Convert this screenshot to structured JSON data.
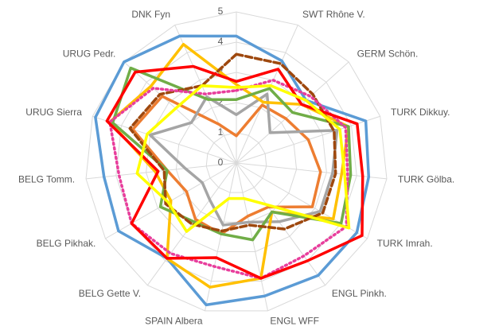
{
  "chart_data": {
    "type": "radar",
    "categories": [
      null,
      "SWT Rhône V.",
      "GERM Schön.",
      "TURK Dikkuy.",
      "TURK Gölba.",
      "TURK Imrah.",
      "ENGL Pinkh.",
      "ENGL WFF",
      "SPAIN Albera",
      "BELG Gette V.",
      "BELG Pikhak.",
      "BELG Tomm.",
      "URUG Sierra",
      "URUG Pedr.",
      "DNK Fyn"
    ],
    "rlim": [
      0,
      5
    ],
    "rticks": [
      0,
      1,
      2,
      3,
      4,
      5
    ],
    "grid": true,
    "series": [
      {
        "color": "#5b9bd5",
        "style": "solid",
        "values": [
          4.2,
          3.7,
          3.1,
          4.5,
          4.4,
          4.6,
          4.6,
          4.5,
          4.8,
          3.9,
          4.5,
          4.4,
          4.9,
          5.0,
          4.6
        ]
      },
      {
        "color": "#ed7d31",
        "style": "solid",
        "values": [
          0.9,
          2.1,
          2.2,
          2.5,
          2.8,
          2.9,
          1.8,
          1.8,
          2.4,
          2.3,
          1.9,
          2.3,
          3.6,
          3.3,
          1.4
        ]
      },
      {
        "color": "#a5a5a5",
        "style": "solid",
        "values": [
          1.6,
          2.5,
          1.5,
          3.5,
          3.2,
          3.2,
          2.4,
          2.0,
          2.1,
          1.5,
          1.3,
          1.7,
          3.0,
          2.0,
          2.4
        ]
      },
      {
        "color": "#ffc000",
        "style": "solid",
        "values": [
          2.6,
          2.2,
          2.9,
          3.9,
          3.5,
          3.7,
          2.0,
          3.9,
          4.2,
          3.9,
          2.5,
          2.7,
          4.4,
          3.8,
          4.3
        ]
      },
      {
        "color": "#70ad47",
        "style": "solid",
        "values": [
          2.1,
          2.7,
          2.5,
          3.9,
          3.8,
          4.0,
          2.0,
          2.6,
          2.4,
          2.4,
          2.9,
          2.3,
          4.3,
          4.7,
          2.3
        ]
      },
      {
        "color": "#9e480e",
        "style": "dashed",
        "values": [
          3.6,
          3.6,
          3.4,
          3.4,
          3.3,
          3.3,
          2.7,
          2.1,
          2.3,
          2.5,
          2.7,
          2.4,
          3.7,
          3.4,
          2.8
        ]
      },
      {
        "color": "#e83e9c",
        "style": "dotted",
        "values": [
          2.4,
          3.0,
          3.3,
          3.8,
          3.7,
          4.2,
          3.8,
          3.9,
          3.5,
          3.7,
          4.0,
          3.9,
          4.4,
          3.7,
          2.5
        ]
      },
      {
        "color": "#ff0000",
        "style": "solid",
        "values": [
          2.7,
          3.4,
          2.9,
          4.2,
          4.2,
          4.8,
          4.0,
          3.9,
          3.2,
          3.9,
          4.0,
          2.6,
          4.5,
          4.5,
          3.5
        ]
      },
      {
        "color": "#ffff00",
        "style": "solid",
        "values": [
          2.5,
          2.8,
          3.1,
          3.6,
          3.6,
          4.3,
          1.7,
          1.2,
          1.2,
          2.8,
          2.6,
          3.3,
          3.1,
          2.7,
          2.8
        ]
      }
    ]
  }
}
